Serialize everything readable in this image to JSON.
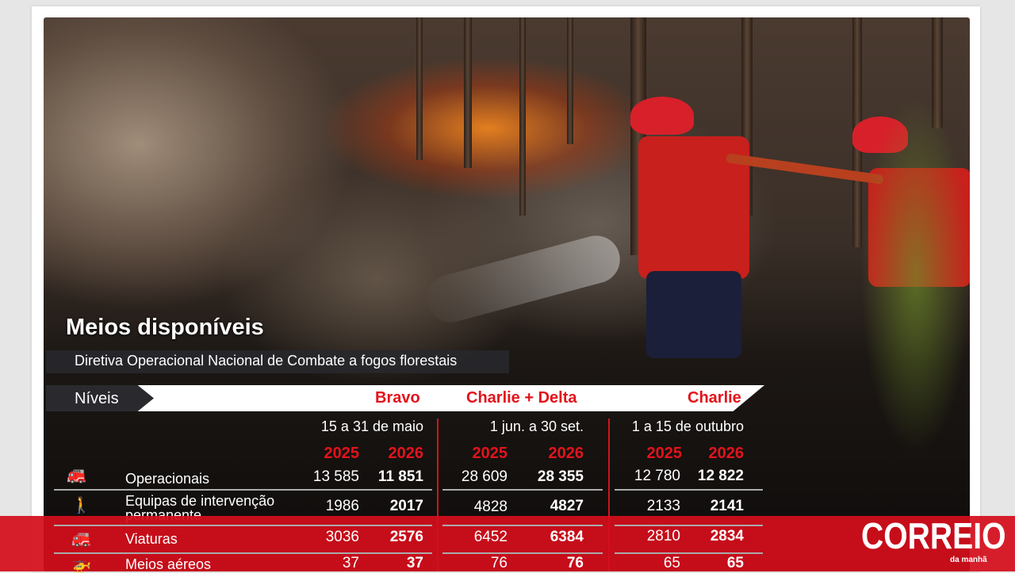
{
  "infographic": {
    "title": "Meios disponíveis",
    "subtitle": "Diretiva Operacional Nacional de Combate a fogos florestais",
    "levels_label": "Níveis",
    "levels": [
      {
        "name": "Bravo",
        "period": "15 a 31 de maio"
      },
      {
        "name": "Charlie + Delta",
        "period": "1 jun. a 30 set."
      },
      {
        "name": "Charlie",
        "period": "1 a 15 de outubro"
      }
    ],
    "years": [
      "2025",
      "2026"
    ],
    "rows": [
      {
        "label": "Operacionais",
        "icon": "firefighters-hose-icon",
        "values": [
          "13 585",
          "11 851",
          "28 609",
          "28 355",
          "12 780",
          "12 822"
        ]
      },
      {
        "label": "Equipas de intervenção permanente",
        "icon": "team-icon",
        "values": [
          "1986",
          "2017",
          "4828",
          "4827",
          "2133",
          "2141"
        ]
      },
      {
        "label": "Viaturas",
        "icon": "fire-truck-icon",
        "values": [
          "3036",
          "2576",
          "6452",
          "6384",
          "2810",
          "2834"
        ]
      },
      {
        "label": "Meios aéreos",
        "icon": "aircraft-icon",
        "values": [
          "37",
          "37",
          "76",
          "76",
          "65",
          "65"
        ]
      }
    ]
  },
  "brand": {
    "logo": "CORREIO",
    "logo_sub": "da manhã",
    "color": "#d40e1c"
  }
}
